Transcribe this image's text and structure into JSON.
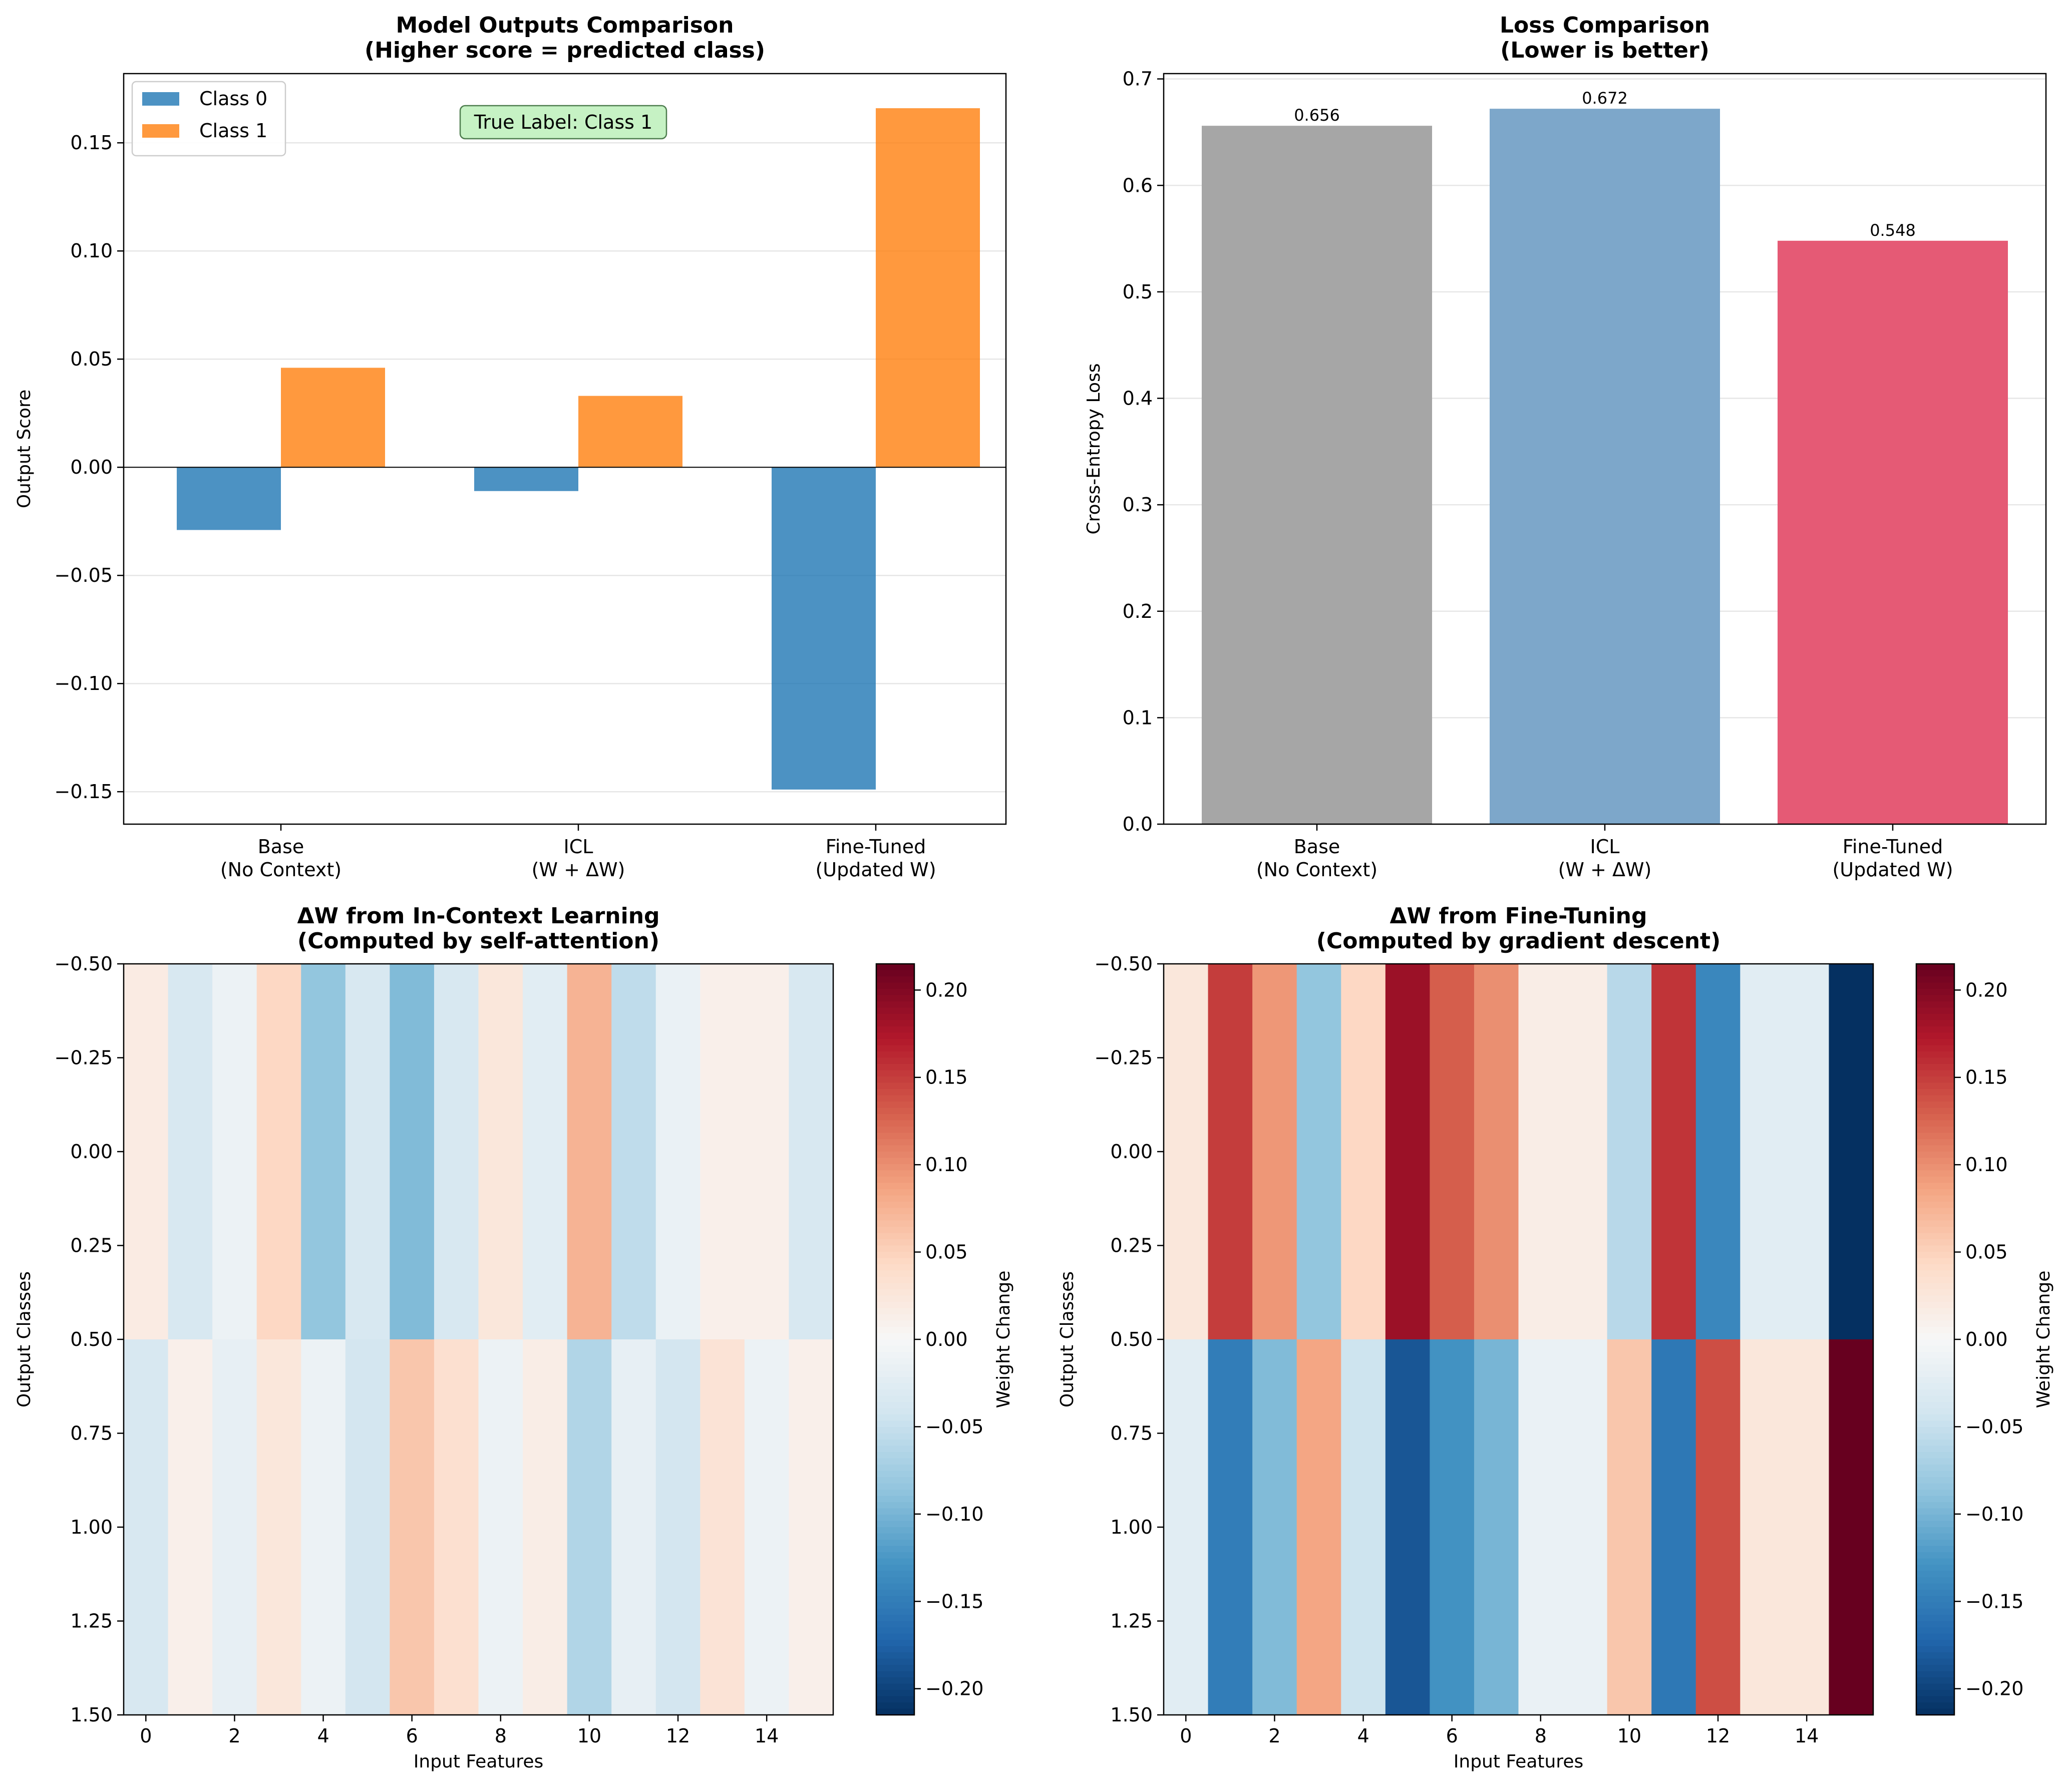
{
  "chart_data": [
    {
      "type": "bar",
      "title_line1": "Model Outputs Comparison",
      "title_line2": "(Higher score = predicted class)",
      "ylabel": "Output Score",
      "xlabel": "",
      "categories": [
        [
          "Base",
          "(No Context)"
        ],
        [
          "ICL",
          "(W + ΔW)"
        ],
        [
          "Fine-Tuned",
          "(Updated W)"
        ]
      ],
      "series": [
        {
          "name": "Class 0",
          "color": "#1f77b4",
          "values": [
            -0.029,
            -0.011,
            -0.149
          ]
        },
        {
          "name": "Class 1",
          "color": "#ff7f0e",
          "values": [
            0.046,
            0.033,
            0.166
          ]
        }
      ],
      "ylim": [
        -0.165,
        0.182
      ],
      "yticks": [
        -0.15,
        -0.1,
        -0.05,
        0.0,
        0.05,
        0.1,
        0.15
      ],
      "ytick_labels": [
        "−0.15",
        "−0.10",
        "−0.05",
        "0.00",
        "0.05",
        "0.10",
        "0.15"
      ],
      "annotation": "True Label: Class 1",
      "legend_position": "top-left",
      "grid": "y"
    },
    {
      "type": "bar",
      "title_line1": "Loss Comparison",
      "title_line2": "(Lower is better)",
      "ylabel": "Cross-Entropy Loss",
      "xlabel": "",
      "categories": [
        [
          "Base",
          "(No Context)"
        ],
        [
          "ICL",
          "(W + ΔW)"
        ],
        [
          "Fine-Tuned",
          "(Updated W)"
        ]
      ],
      "values": [
        0.656,
        0.672,
        0.548
      ],
      "value_labels": [
        "0.656",
        "0.672",
        "0.548"
      ],
      "colors": [
        "#a6a6a6",
        "#7da7ca",
        "#e55a75"
      ],
      "ylim": [
        0,
        0.705
      ],
      "yticks": [
        0,
        0.1,
        0.2,
        0.3,
        0.4,
        0.5,
        0.6,
        0.7
      ],
      "ytick_labels": [
        "0.0",
        "0.1",
        "0.2",
        "0.3",
        "0.4",
        "0.5",
        "0.6",
        "0.7"
      ],
      "grid": "y"
    },
    {
      "type": "heatmap",
      "title_line1": "ΔW from In-Context Learning",
      "title_line2": "(Computed by self-attention)",
      "xlabel": "Input Features",
      "ylabel": "Output Classes",
      "colorbar_label": "Weight Change",
      "rows": [
        [
          0.018,
          -0.035,
          -0.012,
          0.045,
          -0.085,
          -0.035,
          -0.095,
          -0.035,
          0.025,
          -0.025,
          0.075,
          -0.055,
          -0.015,
          0.012,
          0.012,
          -0.035
        ],
        [
          -0.035,
          0.012,
          -0.018,
          0.025,
          -0.012,
          -0.04,
          0.06,
          0.035,
          -0.012,
          0.015,
          -0.065,
          -0.018,
          -0.04,
          0.03,
          -0.012,
          0.012
        ]
      ],
      "vlim": [
        -0.215,
        0.215
      ],
      "xticks": [
        0,
        2,
        4,
        6,
        8,
        10,
        12,
        14
      ],
      "xtick_labels": [
        "0",
        "2",
        "4",
        "6",
        "8",
        "10",
        "12",
        "14"
      ],
      "yticks": [
        -0.5,
        -0.25,
        0.0,
        0.25,
        0.5,
        0.75,
        1.0,
        1.25,
        1.5
      ],
      "ytick_labels": [
        "−0.50",
        "−0.25",
        "0.00",
        "0.25",
        "0.50",
        "0.75",
        "1.00",
        "1.25",
        "1.50"
      ],
      "cbar_ticks": [
        -0.2,
        -0.15,
        -0.1,
        -0.05,
        0.0,
        0.05,
        0.1,
        0.15,
        0.2
      ],
      "cbar_tick_labels": [
        "−0.20",
        "−0.15",
        "−0.10",
        "−0.05",
        "0.00",
        "0.05",
        "0.10",
        "0.15",
        "0.20"
      ]
    },
    {
      "type": "heatmap",
      "title_line1": "ΔW from Fine-Tuning",
      "title_line2": "(Computed by gradient descent)",
      "xlabel": "Input Features",
      "ylabel": "Output Classes",
      "colorbar_label": "Weight Change",
      "rows": [
        [
          0.025,
          0.15,
          0.095,
          -0.085,
          0.045,
          0.185,
          0.13,
          0.1,
          0.015,
          0.015,
          -0.06,
          0.155,
          -0.14,
          -0.025,
          -0.025,
          -0.215
        ],
        [
          -0.025,
          -0.15,
          -0.095,
          0.085,
          -0.045,
          -0.185,
          -0.13,
          -0.1,
          -0.015,
          -0.015,
          0.06,
          -0.155,
          0.14,
          0.025,
          0.025,
          0.215
        ]
      ],
      "vlim": [
        -0.215,
        0.215
      ],
      "xticks": [
        0,
        2,
        4,
        6,
        8,
        10,
        12,
        14
      ],
      "xtick_labels": [
        "0",
        "2",
        "4",
        "6",
        "8",
        "10",
        "12",
        "14"
      ],
      "yticks": [
        -0.5,
        -0.25,
        0.0,
        0.25,
        0.5,
        0.75,
        1.0,
        1.25,
        1.5
      ],
      "ytick_labels": [
        "−0.50",
        "−0.25",
        "0.00",
        "0.25",
        "0.50",
        "0.75",
        "1.00",
        "1.25",
        "1.50"
      ],
      "cbar_ticks": [
        -0.2,
        -0.15,
        -0.1,
        -0.05,
        0.0,
        0.05,
        0.1,
        0.15,
        0.2
      ],
      "cbar_tick_labels": [
        "−0.20",
        "−0.15",
        "−0.10",
        "−0.05",
        "0.00",
        "0.05",
        "0.10",
        "0.15",
        "0.20"
      ]
    }
  ]
}
